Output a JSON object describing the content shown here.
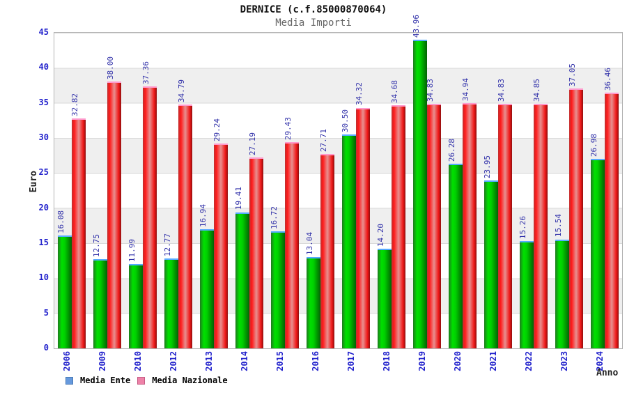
{
  "header": {
    "title": "DERNICE (c.f.85000870064)",
    "subtitle": "Media Importi"
  },
  "chart_data": {
    "type": "bar",
    "title": "DERNICE (c.f.85000870064)",
    "subtitle": "Media Importi",
    "xlabel": "Anno",
    "ylabel": "Euro",
    "ylim": [
      0,
      45
    ],
    "ytick_step": 5,
    "grid": "horizontal gridlines every 5 with alternating white/gray bands",
    "legend_position": "bottom-left",
    "categories": [
      "2006",
      "2009",
      "2010",
      "2012",
      "2013",
      "2014",
      "2015",
      "2016",
      "2017",
      "2018",
      "2019",
      "2020",
      "2021",
      "2022",
      "2023",
      "2024"
    ],
    "series": [
      {
        "name": "Media Ente",
        "bar_color": "#00cc00",
        "cap_color": "#55aaff",
        "legend_swatch_color": "#6699dd",
        "legend_swatch_border": "#4a7ab5",
        "values": [
          16.08,
          12.75,
          11.99,
          12.77,
          16.94,
          19.41,
          16.72,
          13.04,
          30.5,
          14.2,
          43.96,
          26.28,
          23.95,
          15.26,
          15.54,
          26.98
        ]
      },
      {
        "name": "Media Nazionale",
        "bar_color": "#ff0000",
        "cap_color": "#ff99cc",
        "legend_swatch_color": "#ee82a8",
        "legend_swatch_border": "#c75e86",
        "values": [
          32.82,
          38.0,
          37.36,
          34.79,
          29.24,
          27.19,
          29.43,
          27.71,
          34.32,
          34.68,
          34.83,
          34.94,
          34.83,
          34.85,
          37.05,
          36.46
        ]
      }
    ],
    "value_label_format": "2 decimals, rotated 90deg, above bar"
  },
  "colors": {
    "tick_label": "#2222cc",
    "value_label": "#3333aa",
    "band_gray": "#efefef",
    "gridline": "#d9d9d9",
    "plot_border": "#b3b3b3",
    "subtitle_text": "#666666"
  }
}
